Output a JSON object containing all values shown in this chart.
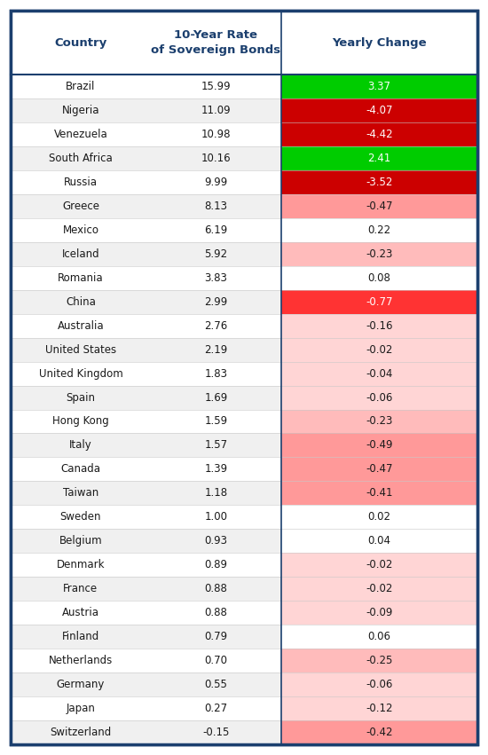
{
  "title_col1": "Country",
  "title_col2": "10-Year Rate\nof Sovereign Bonds",
  "title_col3": "Yearly Change",
  "header_color": "#1B3F6E",
  "border_color": "#1B3F6E",
  "rows": [
    {
      "country": "Brazil",
      "rate": "15.99",
      "change": 3.37
    },
    {
      "country": "Nigeria",
      "rate": "11.09",
      "change": -4.07
    },
    {
      "country": "Venezuela",
      "rate": "10.98",
      "change": -4.42
    },
    {
      "country": "South Africa",
      "rate": "10.16",
      "change": 2.41
    },
    {
      "country": "Russia",
      "rate": "9.99",
      "change": -3.52
    },
    {
      "country": "Greece",
      "rate": "8.13",
      "change": -0.47
    },
    {
      "country": "Mexico",
      "rate": "6.19",
      "change": 0.22
    },
    {
      "country": "Iceland",
      "rate": "5.92",
      "change": -0.23
    },
    {
      "country": "Romania",
      "rate": "3.83",
      "change": 0.08
    },
    {
      "country": "China",
      "rate": "2.99",
      "change": -0.77
    },
    {
      "country": "Australia",
      "rate": "2.76",
      "change": -0.16
    },
    {
      "country": "United States",
      "rate": "2.19",
      "change": -0.02
    },
    {
      "country": "United Kingdom",
      "rate": "1.83",
      "change": -0.04
    },
    {
      "country": "Spain",
      "rate": "1.69",
      "change": -0.06
    },
    {
      "country": "Hong Kong",
      "rate": "1.59",
      "change": -0.23
    },
    {
      "country": "Italy",
      "rate": "1.57",
      "change": -0.49
    },
    {
      "country": "Canada",
      "rate": "1.39",
      "change": -0.47
    },
    {
      "country": "Taiwan",
      "rate": "1.18",
      "change": -0.41
    },
    {
      "country": "Sweden",
      "rate": "1.00",
      "change": 0.02
    },
    {
      "country": "Belgium",
      "rate": "0.93",
      "change": 0.04
    },
    {
      "country": "Denmark",
      "rate": "0.89",
      "change": -0.02
    },
    {
      "country": "France",
      "rate": "0.88",
      "change": -0.02
    },
    {
      "country": "Austria",
      "rate": "0.88",
      "change": -0.09
    },
    {
      "country": "Finland",
      "rate": "0.79",
      "change": 0.06
    },
    {
      "country": "Netherlands",
      "rate": "0.70",
      "change": -0.25
    },
    {
      "country": "Germany",
      "rate": "0.55",
      "change": -0.06
    },
    {
      "country": "Japan",
      "rate": "0.27",
      "change": -0.12
    },
    {
      "country": "Switzerland",
      "rate": "-0.15",
      "change": -0.42
    }
  ],
  "row_bg_odd": "#F0F0F0",
  "row_bg_even": "#FFFFFF",
  "text_color_dark": "#1a1a1a",
  "text_color_white": "#FFFFFF",
  "col3_colors": {
    "green_strong": "#00CC00",
    "red_dark": "#CC0000",
    "red_bright": "#FF3333",
    "pink_medium": "#FF9999",
    "pink_light": "#FFBBBB",
    "pink_lighter": "#FFD5D5",
    "white": "#FFFFFF"
  }
}
